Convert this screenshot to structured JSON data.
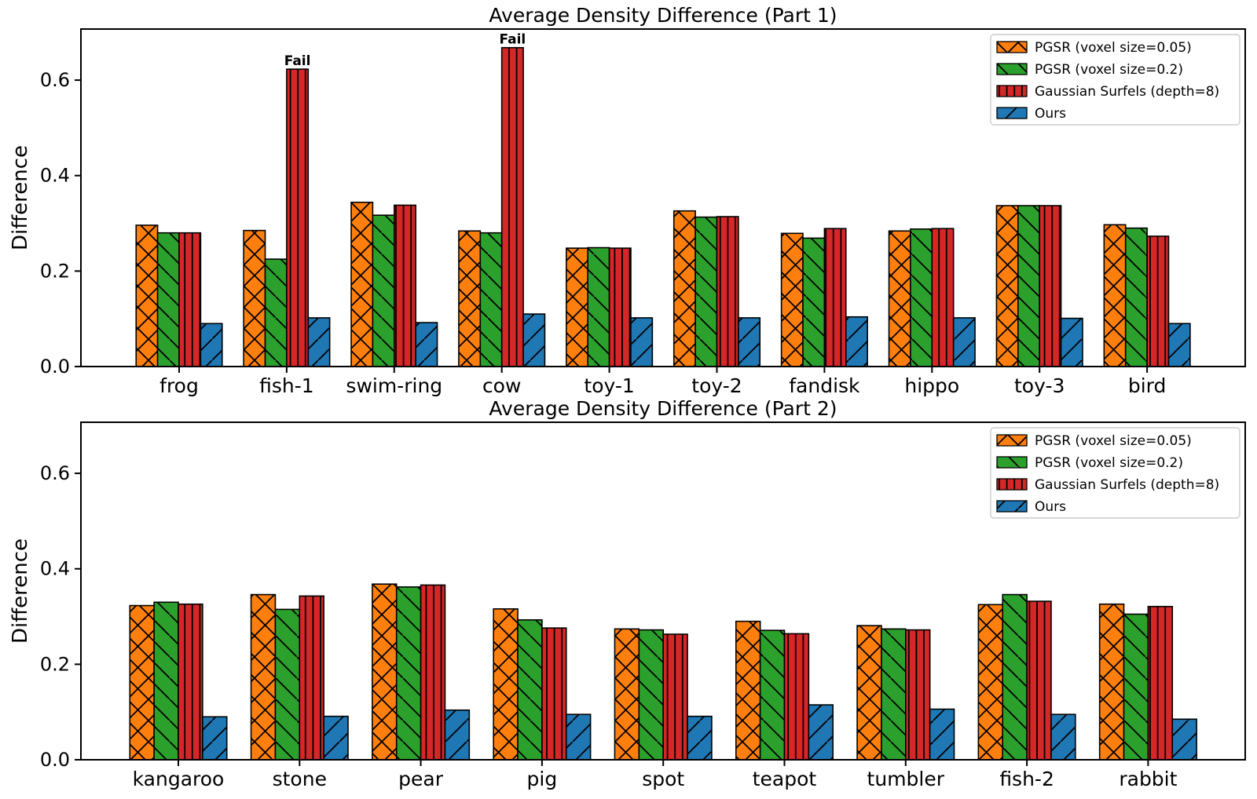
{
  "figure": {
    "background": "#ffffff",
    "text_color": "#000000",
    "fail_label": "Fail",
    "fail_color": "#ff0000"
  },
  "legend": {
    "position": "upper right",
    "entries": [
      {
        "label": "PGSR (voxel size=0.05)",
        "color": "#ff7f0e",
        "hatch": "x"
      },
      {
        "label": "PGSR (voxel size=0.2)",
        "color": "#2ca02c",
        "hatch": "\\"
      },
      {
        "label": "Gaussian Surfels (depth=8)",
        "color": "#d62728",
        "hatch": "|"
      },
      {
        "label": "Ours",
        "color": "#1f77b4",
        "hatch": "/"
      }
    ]
  },
  "chart_data": [
    {
      "type": "bar",
      "title": "Average Density Difference (Part 1)",
      "xlabel": "",
      "ylabel": "Difference",
      "ylim": [
        0.0,
        0.707
      ],
      "yticks": [
        0.0,
        0.2,
        0.4,
        0.6
      ],
      "ytick_labels": [
        "0.0",
        "0.2",
        "0.4",
        "0.6"
      ],
      "grid": false,
      "legend_position": "upper right",
      "categories": [
        "frog",
        "fish-1",
        "swim-ring",
        "cow",
        "toy-1",
        "toy-2",
        "fandisk",
        "hippo",
        "toy-3",
        "bird"
      ],
      "series": [
        {
          "name": "PGSR (voxel size=0.05)",
          "color": "#ff7f0e",
          "hatch": "x",
          "values": [
            0.296,
            0.285,
            0.344,
            0.284,
            0.248,
            0.326,
            0.279,
            0.284,
            0.337,
            0.297
          ]
        },
        {
          "name": "PGSR (voxel size=0.2)",
          "color": "#2ca02c",
          "hatch": "\\",
          "values": [
            0.28,
            0.225,
            0.317,
            0.28,
            0.249,
            0.313,
            0.269,
            0.288,
            0.337,
            0.29
          ]
        },
        {
          "name": "Gaussian Surfels (depth=8)",
          "color": "#d62728",
          "hatch": "|",
          "values": [
            0.28,
            0.623,
            0.338,
            0.668,
            0.248,
            0.314,
            0.289,
            0.289,
            0.337,
            0.273
          ]
        },
        {
          "name": "Ours",
          "color": "#1f77b4",
          "hatch": "/",
          "values": [
            0.09,
            0.102,
            0.092,
            0.11,
            0.102,
            0.102,
            0.104,
            0.102,
            0.101,
            0.09
          ]
        }
      ],
      "annotations": [
        {
          "text": "Fail",
          "category": "fish-1",
          "series": "Gaussian Surfels (depth=8)",
          "color": "#ff0000"
        },
        {
          "text": "Fail",
          "category": "cow",
          "series": "Gaussian Surfels (depth=8)",
          "color": "#ff0000"
        }
      ]
    },
    {
      "type": "bar",
      "title": "Average Density Difference (Part 2)",
      "xlabel": "",
      "ylabel": "Difference",
      "ylim": [
        0.0,
        0.707
      ],
      "yticks": [
        0.0,
        0.2,
        0.4,
        0.6
      ],
      "ytick_labels": [
        "0.0",
        "0.2",
        "0.4",
        "0.6"
      ],
      "grid": false,
      "legend_position": "upper right",
      "categories": [
        "kangaroo",
        "stone",
        "pear",
        "pig",
        "spot",
        "teapot",
        "tumbler",
        "fish-2",
        "rabbit"
      ],
      "series": [
        {
          "name": "PGSR (voxel size=0.05)",
          "color": "#ff7f0e",
          "hatch": "x",
          "values": [
            0.323,
            0.346,
            0.368,
            0.316,
            0.274,
            0.29,
            0.281,
            0.325,
            0.326
          ]
        },
        {
          "name": "PGSR (voxel size=0.2)",
          "color": "#2ca02c",
          "hatch": "\\",
          "values": [
            0.33,
            0.315,
            0.362,
            0.293,
            0.272,
            0.271,
            0.274,
            0.346,
            0.305
          ]
        },
        {
          "name": "Gaussian Surfels (depth=8)",
          "color": "#d62728",
          "hatch": "|",
          "values": [
            0.326,
            0.343,
            0.366,
            0.276,
            0.263,
            0.264,
            0.272,
            0.332,
            0.321
          ]
        },
        {
          "name": "Ours",
          "color": "#1f77b4",
          "hatch": "/",
          "values": [
            0.09,
            0.091,
            0.104,
            0.095,
            0.091,
            0.115,
            0.106,
            0.095,
            0.085
          ]
        }
      ],
      "annotations": []
    }
  ]
}
